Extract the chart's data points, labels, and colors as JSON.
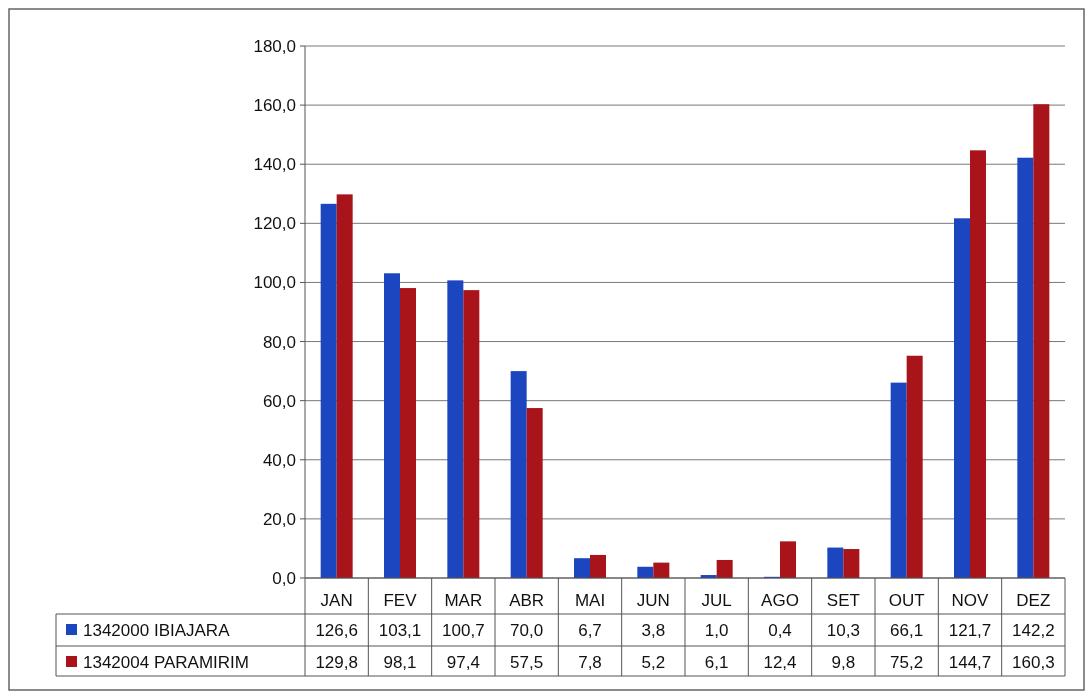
{
  "chart_data": {
    "type": "bar",
    "categories": [
      "JAN",
      "FEV",
      "MAR",
      "ABR",
      "MAI",
      "JUN",
      "JUL",
      "AGO",
      "SET",
      "OUT",
      "NOV",
      "DEZ"
    ],
    "series": [
      {
        "name": "1342000 IBIAJARA",
        "color": "#1c45c0",
        "values": [
          126.6,
          103.1,
          100.7,
          70.0,
          6.7,
          3.8,
          1.0,
          0.4,
          10.3,
          66.1,
          121.7,
          142.2
        ],
        "value_labels": [
          "126,6",
          "103,1",
          "100,7",
          "70,0",
          "6,7",
          "3,8",
          "1,0",
          "0,4",
          "10,3",
          "66,1",
          "121,7",
          "142,2"
        ]
      },
      {
        "name": "1342004 PARAMIRIM",
        "color": "#a8141a",
        "values": [
          129.8,
          98.1,
          97.4,
          57.5,
          7.8,
          5.2,
          6.1,
          12.4,
          9.8,
          75.2,
          144.7,
          160.3
        ],
        "value_labels": [
          "129,8",
          "98,1",
          "97,4",
          "57,5",
          "7,8",
          "5,2",
          "6,1",
          "12,4",
          "9,8",
          "75,2",
          "144,7",
          "160,3"
        ]
      }
    ],
    "ylim": [
      0,
      180
    ],
    "yticks": [
      {
        "value": 0,
        "label": "0,0"
      },
      {
        "value": 20,
        "label": "20,0"
      },
      {
        "value": 40,
        "label": "40,0"
      },
      {
        "value": 60,
        "label": "60,0"
      },
      {
        "value": 80,
        "label": "80,0"
      },
      {
        "value": 100,
        "label": "100,0"
      },
      {
        "value": 120,
        "label": "120,0"
      },
      {
        "value": 140,
        "label": "140,0"
      },
      {
        "value": 160,
        "label": "160,0"
      },
      {
        "value": 180,
        "label": "180,0"
      }
    ],
    "grid": "y",
    "legend": "bottom"
  }
}
